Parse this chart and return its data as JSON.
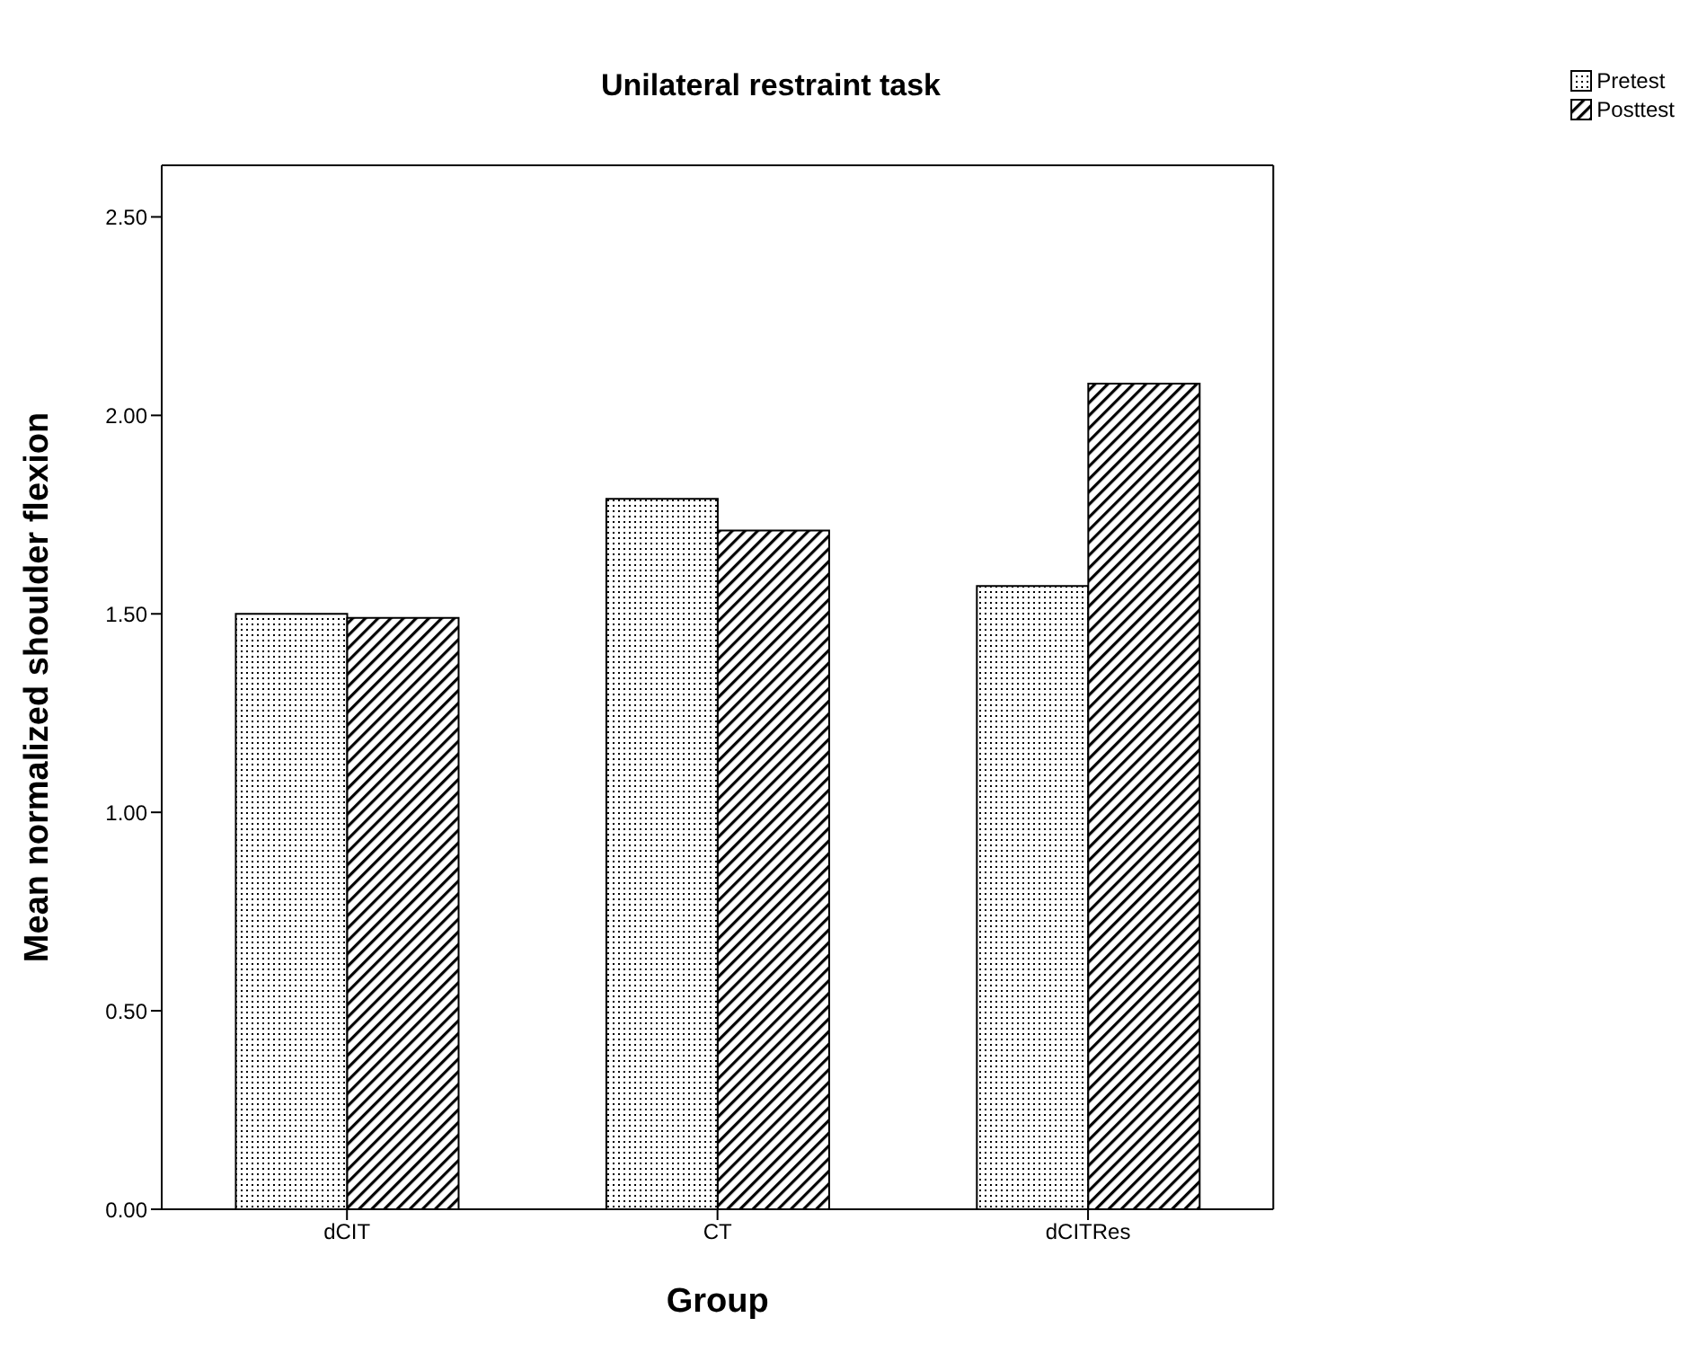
{
  "chart_data": {
    "type": "bar",
    "title": "Unilateral restraint task",
    "xlabel": "Group",
    "ylabel": "Mean normalized shoulder flexion",
    "categories": [
      "dCIT",
      "CT",
      "dCITRes"
    ],
    "series": [
      {
        "name": "Pretest",
        "color": "#000000",
        "values": [
          1.5,
          1.79,
          1.57
        ]
      },
      {
        "name": "Posttest",
        "color": "#000000",
        "values": [
          1.49,
          1.71,
          2.08
        ]
      }
    ],
    "ylim": [
      0,
      2.63
    ],
    "yticks": [
      {
        "value": 0,
        "label": "0.00"
      },
      {
        "value": 0.5,
        "label": "0.50"
      },
      {
        "value": 1,
        "label": "1.00"
      },
      {
        "value": 1.5,
        "label": "1.50"
      },
      {
        "value": 2,
        "label": "2.00"
      },
      {
        "value": 2.5,
        "label": "2.50"
      }
    ],
    "grid": false,
    "legend": "top right"
  }
}
